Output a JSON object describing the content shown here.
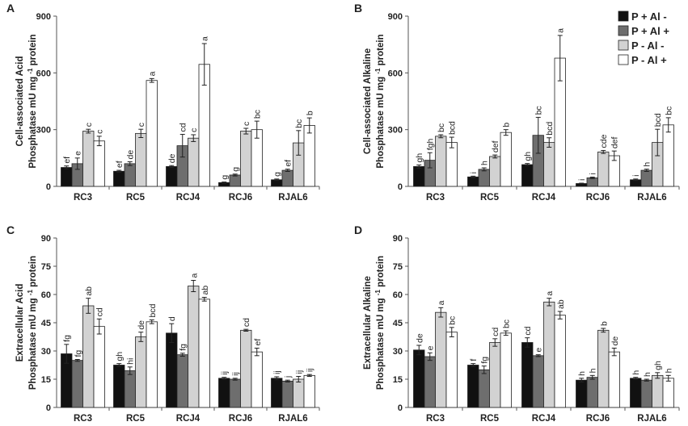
{
  "legend": {
    "series": [
      {
        "name": "P + Al -",
        "color": "#111111"
      },
      {
        "name": "P + Al +",
        "color": "#6e6e6e"
      },
      {
        "name": "P - Al -",
        "color": "#d2d2d2"
      },
      {
        "name": "P - Al +",
        "color": "#ffffff"
      }
    ]
  },
  "chart_data": [
    {
      "type": "bar",
      "panel": "A",
      "ylabel_line1": "Cell-associated Acid",
      "ylabel_line2": "Phosphatase mU mg",
      "ylabel_sup": "-1",
      "ylabel_tail": "protein",
      "categories": [
        "RC3",
        "RC5",
        "RCJ4",
        "RCJ6",
        "RJAL6"
      ],
      "ylim": [
        0,
        900
      ],
      "yticks": [
        "0",
        "300",
        "600",
        "900"
      ],
      "series": [
        {
          "name": "P + Al -",
          "values": [
            100,
            80,
            105,
            20,
            35
          ],
          "errors": [
            8,
            5,
            5,
            3,
            4
          ],
          "letters": [
            "ef",
            "ef",
            "de",
            "g",
            "g"
          ]
        },
        {
          "name": "P + Al +",
          "values": [
            120,
            120,
            215,
            60,
            85
          ],
          "errors": [
            30,
            10,
            60,
            5,
            6
          ],
          "letters": [
            "e",
            "de",
            "cd",
            "g",
            "ef"
          ]
        },
        {
          "name": "P - Al -",
          "values": [
            292,
            280,
            255,
            292,
            230
          ],
          "errors": [
            10,
            22,
            18,
            15,
            65
          ],
          "letters": [
            "c",
            "c",
            "c",
            "c",
            "bc"
          ]
        },
        {
          "name": "P - Al +",
          "values": [
            240,
            560,
            645,
            300,
            322
          ],
          "errors": [
            25,
            10,
            110,
            45,
            40
          ],
          "letters": [
            "c",
            "a",
            "a",
            "bc",
            "b"
          ]
        }
      ]
    },
    {
      "type": "bar",
      "panel": "B",
      "ylabel_line1": "Cell-associated Alkaline",
      "ylabel_line2": "Phosphatase mU mg",
      "ylabel_sup": "-1",
      "ylabel_tail": "protein",
      "categories": [
        "RC3",
        "RC5",
        "RCJ4",
        "RCJ6",
        "RJAL6"
      ],
      "ylim": [
        0,
        900
      ],
      "yticks": [
        "0",
        "300",
        "600",
        "900"
      ],
      "series": [
        {
          "name": "P + Al -",
          "values": [
            105,
            50,
            115,
            15,
            35
          ],
          "errors": [
            8,
            4,
            6,
            2,
            4
          ],
          "letters": [
            "gh",
            "i",
            "gh",
            "i",
            "i"
          ]
        },
        {
          "name": "P + Al +",
          "values": [
            138,
            90,
            270,
            45,
            85
          ],
          "errors": [
            40,
            8,
            95,
            4,
            6
          ],
          "letters": [
            "fgh",
            "h",
            "bc",
            "i",
            "h"
          ]
        },
        {
          "name": "P - Al -",
          "values": [
            265,
            158,
            232,
            182,
            232
          ],
          "errors": [
            8,
            8,
            25,
            8,
            70
          ],
          "letters": [
            "bc",
            "def",
            "bcd",
            "cde",
            "bcd"
          ]
        },
        {
          "name": "P - Al +",
          "values": [
            232,
            285,
            678,
            162,
            325
          ],
          "errors": [
            28,
            15,
            120,
            25,
            38
          ],
          "letters": [
            "bcd",
            "b",
            "a",
            "def",
            "bc"
          ]
        }
      ]
    },
    {
      "type": "bar",
      "panel": "C",
      "ylabel_line1": "Extracellular Acid",
      "ylabel_line2": "Phosphatase mU mg",
      "ylabel_sup": "-1",
      "ylabel_tail": "protein",
      "categories": [
        "RC3",
        "RC5",
        "RCJ4",
        "RCJ6",
        "RJAL6"
      ],
      "ylim": [
        0,
        90
      ],
      "yticks": [
        "0",
        "15",
        "30",
        "45",
        "60",
        "75",
        "90"
      ],
      "series": [
        {
          "name": "P + Al -",
          "values": [
            28.5,
            22.5,
            39.5,
            15.5,
            15.5
          ],
          "errors": [
            5,
            0.8,
            5,
            0.5,
            0.8
          ],
          "letters": [
            "fg",
            "gh",
            "d",
            "ij",
            "ij"
          ]
        },
        {
          "name": "P + Al +",
          "values": [
            25,
            19.5,
            28,
            15,
            14
          ],
          "errors": [
            0.5,
            2,
            0.8,
            0.5,
            0.5
          ],
          "letters": [
            "fg",
            "hi",
            "fg",
            "ij",
            "j"
          ]
        },
        {
          "name": "P - Al -",
          "values": [
            54,
            37.5,
            64.5,
            41,
            15
          ],
          "errors": [
            4,
            2.5,
            3,
            0.5,
            1.5
          ],
          "letters": [
            "ab",
            "de",
            "a",
            "cd",
            "ij"
          ]
        },
        {
          "name": "P - Al +",
          "values": [
            43,
            45.5,
            57.5,
            29.5,
            17
          ],
          "errors": [
            4,
            1,
            1,
            2,
            0.5
          ],
          "letters": [
            "cd",
            "bcd",
            "ab",
            "ef",
            "ij"
          ]
        }
      ]
    },
    {
      "type": "bar",
      "panel": "D",
      "ylabel_line1": "Extracellular Alkaline",
      "ylabel_line2": "Phosphatase mU mg",
      "ylabel_sup": "-1",
      "ylabel_tail": "protein",
      "categories": [
        "RC3",
        "RC5",
        "RCJ4",
        "RCJ6",
        "RJAL6"
      ],
      "ylim": [
        0,
        90
      ],
      "yticks": [
        "0",
        "15",
        "30",
        "45",
        "60",
        "75",
        "90"
      ],
      "series": [
        {
          "name": "P + Al -",
          "values": [
            30.5,
            22.5,
            34.5,
            14.5,
            15.5
          ],
          "errors": [
            2.5,
            0.8,
            2.5,
            1,
            0.5
          ],
          "letters": [
            "de",
            "f",
            "cd",
            "h",
            "h"
          ]
        },
        {
          "name": "P + Al +",
          "values": [
            27,
            20,
            27.5,
            16,
            14.5
          ],
          "errors": [
            2,
            2,
            0.5,
            1,
            0.5
          ],
          "letters": [
            "e",
            "fg",
            "e",
            "h",
            "h"
          ]
        },
        {
          "name": "P - Al -",
          "values": [
            50.5,
            34.5,
            56,
            41,
            17
          ],
          "errors": [
            2.5,
            2,
            2,
            1,
            1.5
          ],
          "letters": [
            "a",
            "cd",
            "a",
            "b",
            "gh"
          ]
        },
        {
          "name": "P - Al +",
          "values": [
            40,
            39.5,
            49,
            29.5,
            15.5
          ],
          "errors": [
            2.5,
            1.2,
            2,
            2,
            1.5
          ],
          "letters": [
            "bc",
            "bc",
            "ab",
            "de",
            "h"
          ]
        }
      ]
    }
  ]
}
